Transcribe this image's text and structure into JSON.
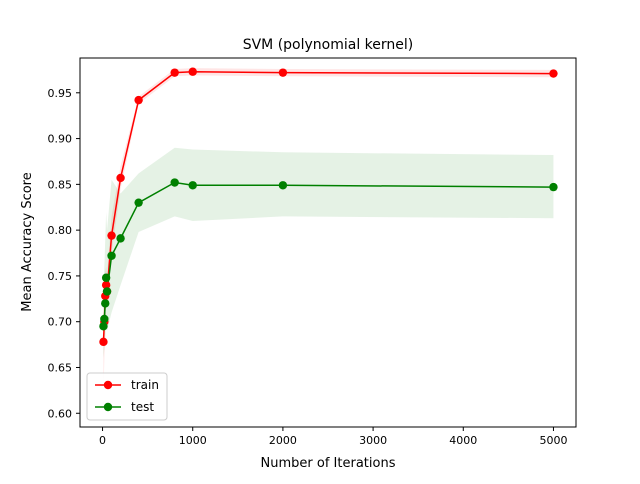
{
  "chart_data": {
    "type": "line",
    "title": "SVM (polynomial kernel)",
    "xlabel": "Number of Iterations",
    "ylabel": "Mean Accuracy Score",
    "xlim": [
      -250,
      5250
    ],
    "ylim": [
      0.585,
      0.988
    ],
    "xticks": [
      0,
      1000,
      2000,
      3000,
      4000,
      5000
    ],
    "xtick_labels": [
      "0",
      "1000",
      "2000",
      "3000",
      "4000",
      "5000"
    ],
    "yticks": [
      0.6,
      0.65,
      0.7,
      0.75,
      0.8,
      0.85,
      0.9,
      0.95
    ],
    "ytick_labels": [
      "0.60",
      "0.65",
      "0.70",
      "0.75",
      "0.80",
      "0.85",
      "0.90",
      "0.95"
    ],
    "grid": false,
    "legend_position": "lower-left",
    "x": [
      10,
      20,
      30,
      40,
      50,
      100,
      200,
      400,
      800,
      1000,
      2000,
      5000
    ],
    "series": [
      {
        "name": "train",
        "color": "#ff0000",
        "band_color": "#ff0000",
        "values": [
          0.678,
          0.7,
          0.728,
          0.74,
          0.733,
          0.794,
          0.857,
          0.942,
          0.972,
          0.973,
          0.972,
          0.971
        ],
        "lower": [
          0.62,
          0.66,
          0.7,
          0.72,
          0.72,
          0.775,
          0.845,
          0.938,
          0.968,
          0.969,
          0.968,
          0.967
        ],
        "upper": [
          0.73,
          0.74,
          0.755,
          0.76,
          0.75,
          0.815,
          0.87,
          0.946,
          0.976,
          0.977,
          0.976,
          0.975
        ]
      },
      {
        "name": "test",
        "color": "#008000",
        "band_color": "#008000",
        "values": [
          0.695,
          0.703,
          0.72,
          0.748,
          0.733,
          0.772,
          0.791,
          0.83,
          0.852,
          0.849,
          0.849,
          0.847
        ],
        "lower": [
          0.66,
          0.67,
          0.68,
          0.7,
          0.69,
          0.71,
          0.74,
          0.798,
          0.815,
          0.81,
          0.815,
          0.813
        ],
        "upper": [
          0.74,
          0.76,
          0.79,
          0.82,
          0.8,
          0.855,
          0.84,
          0.862,
          0.89,
          0.888,
          0.885,
          0.882
        ]
      }
    ]
  }
}
